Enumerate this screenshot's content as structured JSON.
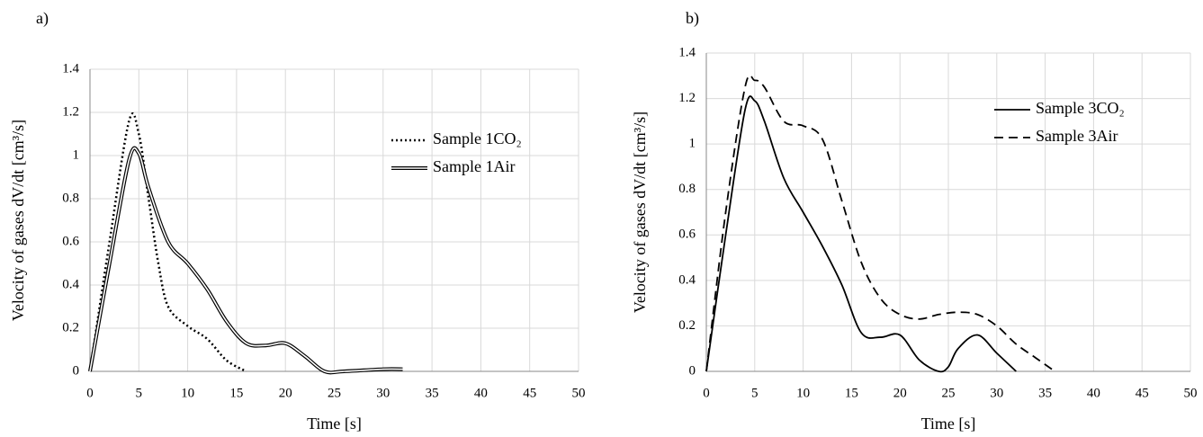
{
  "chart_data": [
    {
      "type": "line",
      "panel_label": "a)",
      "xlabel": "Time [s]",
      "ylabel": "Velocity of gases dV/dt [cm³/s]",
      "xlim": [
        0,
        50
      ],
      "xticks": [
        0,
        5,
        10,
        15,
        20,
        25,
        30,
        35,
        40,
        45,
        50
      ],
      "ylim": [
        0,
        1.4
      ],
      "yticks": [
        0,
        0.2,
        0.4,
        0.6,
        0.8,
        1,
        1.2,
        1.4
      ],
      "grid": true,
      "series": [
        {
          "name": "Sample 1CO₂",
          "color": "#000000",
          "style": "dotted",
          "x": [
            0,
            2,
            4,
            5,
            6,
            7,
            8,
            10,
            12,
            14,
            16
          ],
          "values": [
            0,
            0.6,
            1.16,
            1.1,
            0.8,
            0.5,
            0.3,
            0.21,
            0.15,
            0.05,
            0
          ]
        },
        {
          "name": "Sample 1Air",
          "color": "#000000",
          "style": "double",
          "x": [
            0,
            2,
            4,
            5,
            6,
            8,
            10,
            12,
            14,
            16,
            18,
            20,
            22,
            24,
            26,
            30,
            32
          ],
          "values": [
            0,
            0.5,
            0.98,
            1.01,
            0.85,
            0.6,
            0.5,
            0.38,
            0.23,
            0.13,
            0.12,
            0.13,
            0.07,
            0,
            0,
            0.01,
            0.01
          ]
        }
      ]
    },
    {
      "type": "line",
      "panel_label": "b)",
      "xlabel": "Time [s]",
      "ylabel": "Velocity of gases dV/dt [cm³/s]",
      "xlim": [
        0,
        50
      ],
      "xticks": [
        0,
        5,
        10,
        15,
        20,
        25,
        30,
        35,
        40,
        45,
        50
      ],
      "ylim": [
        0,
        1.4
      ],
      "yticks": [
        0,
        0.2,
        0.4,
        0.6,
        0.8,
        1,
        1.2,
        1.4
      ],
      "grid": true,
      "series": [
        {
          "name": "Sample 3CO₂",
          "color": "#000000",
          "style": "solid",
          "x": [
            0,
            2,
            4,
            5,
            6,
            8,
            10,
            12,
            14,
            16,
            18,
            20,
            22,
            24,
            25,
            26,
            28,
            30,
            32
          ],
          "values": [
            0,
            0.6,
            1.15,
            1.19,
            1.1,
            0.85,
            0.7,
            0.55,
            0.38,
            0.17,
            0.15,
            0.16,
            0.05,
            0,
            0.02,
            0.1,
            0.16,
            0.08,
            0
          ]
        },
        {
          "name": "Sample 3Air",
          "color": "#000000",
          "style": "dashed",
          "x": [
            0,
            2,
            4,
            5,
            6,
            8,
            10,
            12,
            14,
            16,
            18,
            20,
            22,
            24,
            26,
            28,
            30,
            32,
            34,
            36
          ],
          "values": [
            0,
            0.7,
            1.25,
            1.28,
            1.25,
            1.1,
            1.08,
            1.02,
            0.75,
            0.48,
            0.32,
            0.25,
            0.23,
            0.25,
            0.26,
            0.25,
            0.2,
            0.12,
            0.06,
            0
          ]
        }
      ]
    }
  ]
}
